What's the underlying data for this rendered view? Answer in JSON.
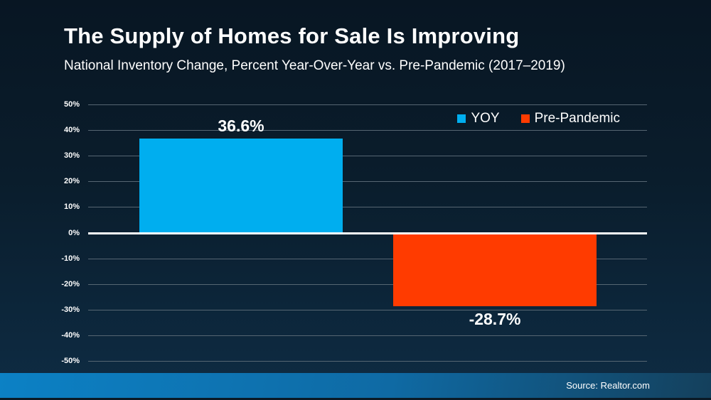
{
  "header": {
    "title": "The Supply of Homes for Sale Is Improving",
    "subtitle": "National Inventory Change, Percent Year-Over-Year vs. Pre-Pandemic (2017–2019)"
  },
  "chart_data": {
    "type": "bar",
    "categories": [
      "YOY",
      "Pre-Pandemic"
    ],
    "values": [
      36.6,
      -28.7
    ],
    "value_labels": [
      "36.6%",
      "-28.7%"
    ],
    "series_colors": [
      "#00AEEF",
      "#FF3B00"
    ],
    "title": "The Supply of Homes for Sale Is Improving",
    "subtitle": "National Inventory Change, Percent Year-Over-Year vs. Pre-Pandemic (2017–2019)",
    "xlabel": "",
    "ylabel": "",
    "ylim": [
      -50,
      50
    ],
    "ytick_values": [
      50,
      40,
      30,
      20,
      10,
      0,
      -10,
      -20,
      -30,
      -40,
      -50
    ],
    "ytick_labels": [
      "50%",
      "40%",
      "30%",
      "20%",
      "10%",
      "0%",
      "-10%",
      "-20%",
      "-30%",
      "-40%",
      "-50%"
    ],
    "grid": true,
    "zero_line": true,
    "legend_position": "top-right",
    "legend": [
      {
        "label": "YOY",
        "color": "#00AEEF"
      },
      {
        "label": "Pre-Pandemic",
        "color": "#FF3B00"
      }
    ]
  },
  "footer": {
    "source_label": "Source: Realtor.com"
  },
  "colors": {
    "bar_yoy": "#00AEEF",
    "bar_pre_pandemic": "#FF3B00",
    "background_top": "#081623",
    "background_bottom": "#0E2C44",
    "gridline": "#566672",
    "zero_line": "#FFFFFF",
    "footer_gradient_left": "#0C81C5",
    "footer_gradient_right": "#14405C",
    "text": "#FFFFFF"
  }
}
